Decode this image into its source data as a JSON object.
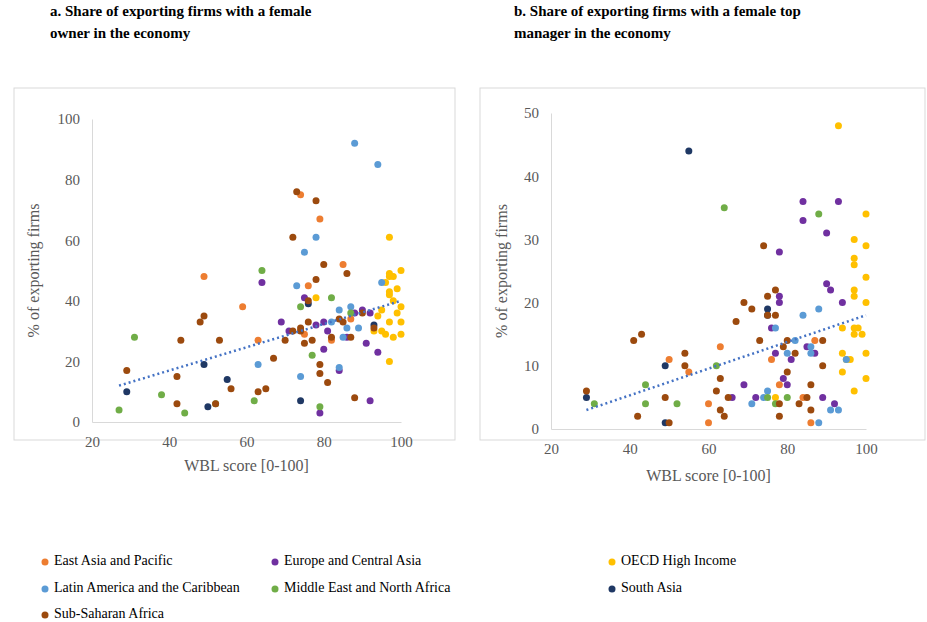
{
  "chart_data": [
    {
      "type": "scatter",
      "title": [
        "a. Share of exporting firms with a female",
        "owner in the economy"
      ],
      "x_label": "WBL score [0-100]",
      "y_label": "% of exporting firms",
      "xlim": [
        20,
        100
      ],
      "xticks": [
        20,
        40,
        60,
        80,
        100
      ],
      "ylim": [
        0,
        100
      ],
      "yticks": [
        0,
        20,
        40,
        60,
        80,
        100
      ],
      "grid": false,
      "marker": "circle",
      "trend": {
        "x": [
          27,
          100
        ],
        "values": [
          12,
          40
        ],
        "color": "#4472c4",
        "line_style": "dotted"
      },
      "series": [
        {
          "name": "East Asia and Pacific",
          "color": "#ed7d31",
          "x": [
            49,
            59,
            63,
            74,
            75,
            76,
            79,
            85,
            87,
            82
          ],
          "values": [
            48,
            38,
            27,
            75,
            29,
            45,
            67,
            52,
            34,
            27
          ]
        },
        {
          "name": "Europe and Central Asia",
          "color": "#7030a0",
          "x": [
            64,
            69,
            71,
            75,
            78,
            79,
            80,
            81,
            84,
            86,
            88,
            90,
            91,
            92,
            92,
            94,
            80
          ],
          "values": [
            46,
            33,
            30,
            41,
            32,
            3,
            24,
            30,
            17,
            28,
            36,
            37,
            26,
            7,
            36,
            23,
            33
          ]
        },
        {
          "name": "OECD High Income",
          "color": "#ffc000",
          "x": [
            78,
            93,
            94,
            95,
            95,
            96,
            96,
            97,
            97,
            97,
            97,
            97,
            97,
            98,
            98,
            99,
            99,
            100,
            100,
            100,
            100,
            97,
            98
          ],
          "values": [
            41,
            30,
            35,
            37,
            30,
            29,
            46,
            48,
            49,
            43,
            42,
            61,
            20,
            48,
            28,
            36,
            44,
            50,
            38,
            33,
            29,
            33,
            40
          ]
        },
        {
          "name": "Latin America and the Caribbean",
          "color": "#5b9bd5",
          "x": [
            63,
            73,
            74,
            75,
            78,
            82,
            84,
            85,
            86,
            87,
            88,
            89,
            94,
            95,
            84
          ],
          "values": [
            19,
            45,
            15,
            56,
            61,
            33,
            18,
            28,
            31,
            38,
            92,
            31,
            85,
            46,
            37
          ]
        },
        {
          "name": "Middle East and North Africa",
          "color": "#70ad47",
          "x": [
            27,
            31,
            38,
            44,
            52,
            62,
            64,
            74,
            77,
            79,
            82,
            87
          ],
          "values": [
            4,
            28,
            9,
            3,
            6,
            7,
            50,
            38,
            22,
            5,
            41,
            36
          ]
        },
        {
          "name": "South Asia",
          "color": "#1f3864",
          "x": [
            29,
            49,
            50,
            55,
            74,
            76,
            93
          ],
          "values": [
            10,
            19,
            5,
            14,
            7,
            39,
            32
          ]
        },
        {
          "name": "Sub-Saharan Africa",
          "color": "#9c4a0e",
          "x": [
            29,
            42,
            43,
            48,
            49,
            52,
            53,
            56,
            63,
            65,
            67,
            70,
            72,
            72,
            73,
            74,
            75,
            76,
            77,
            78,
            78,
            79,
            79,
            80,
            81,
            82,
            84,
            85,
            86,
            87,
            88,
            90,
            93,
            74,
            76,
            42
          ],
          "values": [
            17,
            15,
            27,
            33,
            35,
            6,
            27,
            11,
            10,
            11,
            21,
            27,
            30,
            61,
            76,
            31,
            26,
            40,
            27,
            47,
            73,
            16,
            19,
            52,
            13,
            28,
            34,
            33,
            49,
            28,
            8,
            36,
            31,
            30,
            33,
            6
          ]
        }
      ]
    },
    {
      "type": "scatter",
      "title": [
        "b. Share of exporting firms with a female top",
        "manager in the economy"
      ],
      "x_label": "WBL score [0-100]",
      "y_label": "% of exporting firms",
      "xlim": [
        20,
        100
      ],
      "xticks": [
        20,
        40,
        60,
        80,
        100
      ],
      "ylim": [
        0,
        50
      ],
      "yticks": [
        0,
        10,
        20,
        30,
        40,
        50
      ],
      "grid": false,
      "marker": "circle",
      "trend": {
        "x": [
          29,
          100
        ],
        "values": [
          3,
          18
        ],
        "color": "#4472c4",
        "line_style": "dotted"
      },
      "series": [
        {
          "name": "East Asia and Pacific",
          "color": "#ed7d31",
          "x": [
            50,
            55,
            60,
            60,
            63,
            76,
            78,
            84,
            86,
            87
          ],
          "values": [
            11,
            9,
            4,
            1,
            13,
            11,
            7,
            5,
            1,
            14
          ]
        },
        {
          "name": "Europe and Central Asia",
          "color": "#7030a0",
          "x": [
            66,
            69,
            72,
            76,
            77,
            78,
            78,
            78,
            79,
            81,
            84,
            84,
            85,
            87,
            89,
            90,
            90,
            91,
            92,
            93,
            94,
            80
          ],
          "values": [
            5,
            7,
            5,
            16,
            12,
            20,
            21,
            28,
            8,
            11,
            36,
            33,
            13,
            12,
            5,
            31,
            23,
            22,
            4,
            36,
            20,
            7
          ]
        },
        {
          "name": "OECD High Income",
          "color": "#ffc000",
          "x": [
            77,
            93,
            94,
            94,
            94,
            96,
            97,
            97,
            97,
            97,
            97,
            97,
            97,
            97,
            98,
            100,
            100,
            100,
            100,
            100,
            100,
            99,
            95
          ],
          "values": [
            5,
            48,
            12,
            16,
            9,
            11,
            30,
            27,
            22,
            26,
            21,
            15,
            16,
            6,
            16,
            34,
            29,
            24,
            20,
            12,
            8,
            15,
            11
          ]
        },
        {
          "name": "Latin America and the Caribbean",
          "color": "#5b9bd5",
          "x": [
            71,
            74,
            75,
            77,
            80,
            84,
            86,
            86,
            88,
            88,
            91,
            93,
            95,
            82
          ],
          "values": [
            4,
            5,
            6,
            16,
            12,
            18,
            13,
            12,
            19,
            1,
            3,
            3,
            11,
            14
          ]
        },
        {
          "name": "Middle East and North Africa",
          "color": "#70ad47",
          "x": [
            31,
            44,
            44,
            52,
            64,
            62,
            77,
            88,
            80,
            75
          ],
          "values": [
            4,
            7,
            4,
            4,
            35,
            10,
            4,
            34,
            5,
            5
          ]
        },
        {
          "name": "South Asia",
          "color": "#1f3864",
          "x": [
            29,
            49,
            49,
            55,
            75,
            75
          ],
          "values": [
            5,
            10,
            1,
            44,
            18,
            19
          ]
        },
        {
          "name": "Sub-Saharan Africa",
          "color": "#9c4a0e",
          "x": [
            29,
            41,
            43,
            42,
            49,
            50,
            54,
            54,
            62,
            63,
            63,
            64,
            65,
            67,
            69,
            71,
            74,
            73,
            75,
            75,
            77,
            77,
            78,
            78,
            79,
            80,
            80,
            83,
            85,
            86,
            86,
            89,
            89,
            82
          ],
          "values": [
            6,
            14,
            15,
            2,
            5,
            1,
            12,
            10,
            6,
            8,
            3,
            2,
            5,
            17,
            20,
            19,
            29,
            14,
            21,
            18,
            22,
            18,
            2,
            4,
            13,
            14,
            9,
            4,
            5,
            7,
            3,
            14,
            10,
            12
          ]
        }
      ]
    }
  ]
}
